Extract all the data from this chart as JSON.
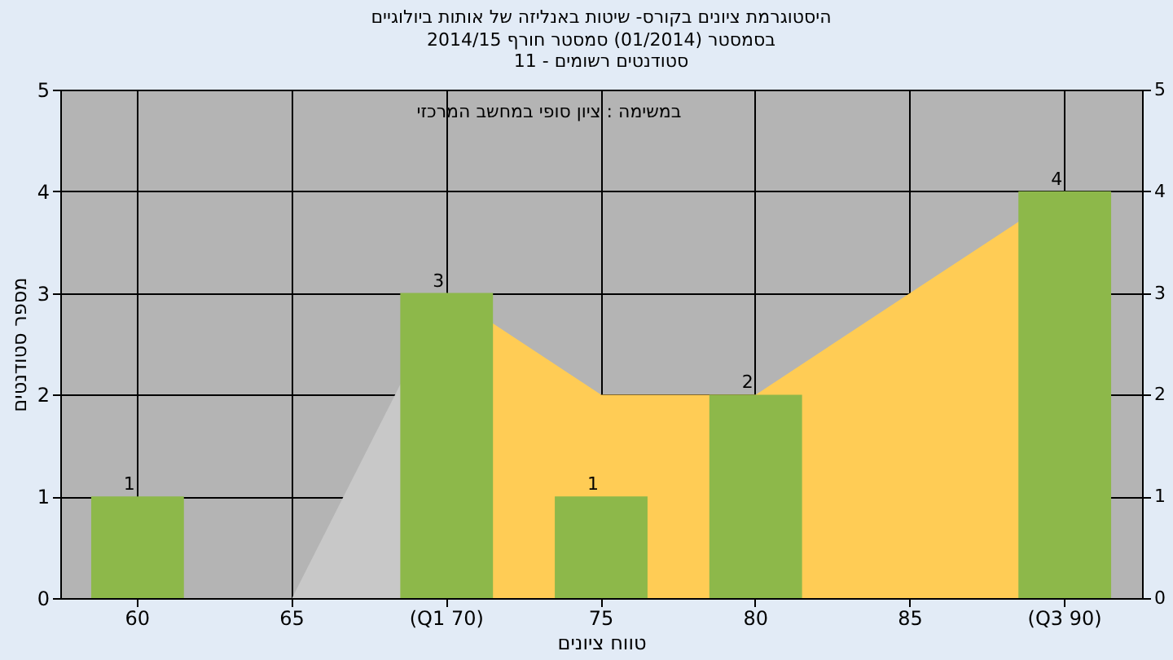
{
  "chart_data": {
    "type": "bar",
    "title": "היסטוגרמת ציונים בקורס- שיטות באנליזה של אותות ביולוגיים",
    "subtitle": "בסמסטר  (01/2014)  סמסטר חורף 2014/15\nסטודנטים רשומים - 11",
    "annotations": [
      "במשימה : ציון סופי במחשב המרכזי"
    ],
    "xlabel": "טווח ציונים",
    "ylabel": "מספר סטודנטים",
    "categories": [
      "60",
      "65",
      "(Q1 70)",
      "75",
      "80",
      "85",
      "(Q3 90)"
    ],
    "series": [
      {
        "type": "area",
        "color": "#c8c8c8",
        "values": [
          null,
          0,
          3,
          null,
          null,
          null,
          null
        ]
      },
      {
        "type": "area",
        "color": "#ffcc55",
        "values": [
          null,
          null,
          3,
          2,
          2,
          3,
          4
        ]
      },
      {
        "color": "#8db84a",
        "values": [
          1,
          0,
          3,
          1,
          2,
          0,
          4
        ],
        "value_labels": [
          "1",
          null,
          "3",
          "1",
          "2",
          null,
          "4"
        ]
      }
    ],
    "ylim": [
      0,
      5
    ],
    "yticks": [
      0,
      1,
      2,
      3,
      4,
      5
    ],
    "y2lim": [
      0,
      5
    ],
    "y2ticks": [
      0,
      1,
      2,
      3,
      4,
      5
    ],
    "grid": true
  }
}
